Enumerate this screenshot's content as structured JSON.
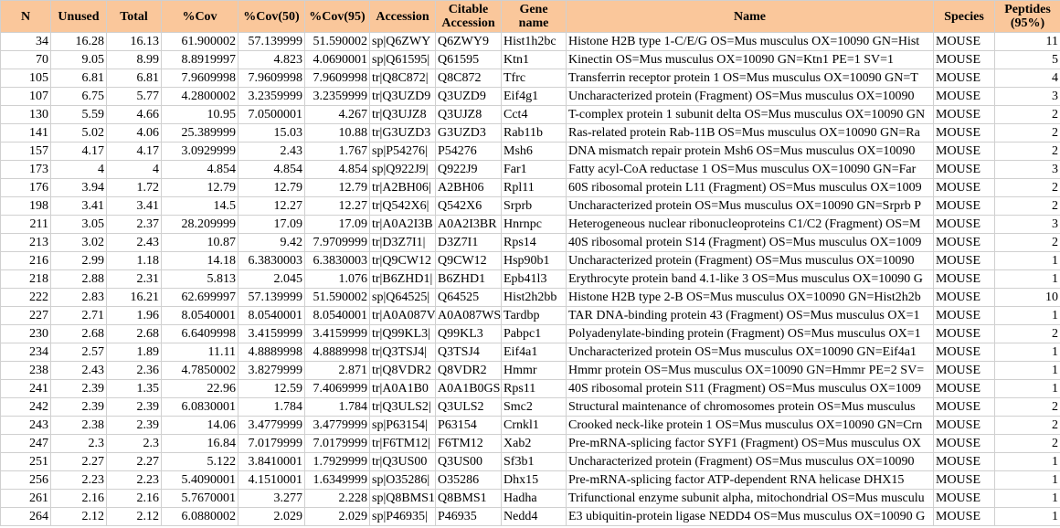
{
  "table": {
    "columns": [
      "N",
      "Unused",
      "Total",
      "%Cov",
      "%Cov(50)",
      "%Cov(95)",
      "Accession",
      "Citable Accession",
      "Gene name",
      "Name",
      "Species",
      "Peptides (95%)"
    ],
    "rows": [
      [
        34,
        16.28,
        16.13,
        61.900002,
        57.139999,
        51.590002,
        "sp|Q6ZWY",
        "Q6ZWY9",
        "Hist1h2bc",
        "Histone H2B type 1-C/E/G OS=Mus musculus OX=10090 GN=Hist",
        "MOUSE",
        11
      ],
      [
        70,
        9.05,
        8.99,
        8.8919997,
        4.823,
        4.0690001,
        "sp|Q61595|",
        "Q61595",
        "Ktn1",
        "Kinectin OS=Mus musculus OX=10090 GN=Ktn1 PE=1 SV=1",
        "MOUSE",
        5
      ],
      [
        105,
        6.81,
        6.81,
        7.9609998,
        7.9609998,
        7.9609998,
        "tr|Q8C872|",
        "Q8C872",
        "Tfrc",
        "Transferrin receptor protein 1 OS=Mus musculus OX=10090 GN=T",
        "MOUSE",
        4
      ],
      [
        107,
        6.75,
        5.77,
        4.2800002,
        3.2359999,
        3.2359999,
        "tr|Q3UZD9",
        "Q3UZD9",
        "Eif4g1",
        "Uncharacterized protein (Fragment) OS=Mus musculus OX=10090",
        "MOUSE",
        3
      ],
      [
        130,
        5.59,
        4.66,
        10.95,
        7.0500001,
        4.267,
        "tr|Q3UJZ8",
        "Q3UJZ8",
        "Cct4",
        "T-complex protein 1 subunit delta OS=Mus musculus OX=10090 GN",
        "MOUSE",
        2
      ],
      [
        141,
        5.02,
        4.06,
        25.389999,
        15.03,
        10.88,
        "tr|G3UZD3",
        "G3UZD3",
        "Rab11b",
        "Ras-related protein Rab-11B OS=Mus musculus OX=10090 GN=Ra",
        "MOUSE",
        2
      ],
      [
        157,
        4.17,
        4.17,
        3.0929999,
        2.43,
        1.767,
        "sp|P54276|",
        "P54276",
        "Msh6",
        "DNA mismatch repair protein Msh6 OS=Mus musculus OX=10090",
        "MOUSE",
        2
      ],
      [
        173,
        4,
        4,
        4.854,
        4.854,
        4.854,
        "sp|Q922J9|",
        "Q922J9",
        "Far1",
        "Fatty acyl-CoA reductase 1 OS=Mus musculus OX=10090 GN=Far",
        "MOUSE",
        3
      ],
      [
        176,
        3.94,
        1.72,
        12.79,
        12.79,
        12.79,
        "tr|A2BH06|",
        "A2BH06",
        "Rpl11",
        "60S ribosomal protein L11 (Fragment) OS=Mus musculus OX=1009",
        "MOUSE",
        2
      ],
      [
        198,
        3.41,
        3.41,
        14.5,
        12.27,
        12.27,
        "tr|Q542X6|",
        "Q542X6",
        "Srprb",
        "Uncharacterized protein OS=Mus musculus OX=10090 GN=Srprb P",
        "MOUSE",
        2
      ],
      [
        211,
        3.05,
        2.37,
        28.209999,
        17.09,
        17.09,
        "tr|A0A2I3B",
        "A0A2I3BR",
        "Hnrnpc",
        "Heterogeneous nuclear ribonucleoproteins C1/C2 (Fragment) OS=M",
        "MOUSE",
        3
      ],
      [
        213,
        3.02,
        2.43,
        10.87,
        9.42,
        7.9709999,
        "tr|D3Z7I1|",
        "D3Z7I1",
        "Rps14",
        "40S ribosomal protein S14 (Fragment) OS=Mus musculus OX=1009",
        "MOUSE",
        2
      ],
      [
        216,
        2.99,
        1.18,
        14.18,
        6.3830003,
        6.3830003,
        "tr|Q9CW12",
        "Q9CW12",
        "Hsp90b1",
        "Uncharacterized protein (Fragment) OS=Mus musculus OX=10090",
        "MOUSE",
        1
      ],
      [
        218,
        2.88,
        2.31,
        5.813,
        2.045,
        1.076,
        "tr|B6ZHD1|",
        "B6ZHD1",
        "Epb41l3",
        "Erythrocyte protein band 4.1-like 3 OS=Mus musculus OX=10090 G",
        "MOUSE",
        1
      ],
      [
        222,
        2.83,
        16.21,
        62.699997,
        57.139999,
        51.590002,
        "sp|Q64525|",
        "Q64525",
        "Hist2h2bb",
        "Histone H2B type 2-B OS=Mus musculus OX=10090 GN=Hist2h2b",
        "MOUSE",
        10
      ],
      [
        227,
        2.71,
        1.96,
        8.0540001,
        8.0540001,
        8.0540001,
        "tr|A0A087V",
        "A0A087WS",
        "Tardbp",
        "TAR DNA-binding protein 43 (Fragment) OS=Mus musculus OX=1",
        "MOUSE",
        1
      ],
      [
        230,
        2.68,
        2.68,
        6.6409998,
        3.4159999,
        3.4159999,
        "tr|Q99KL3|",
        "Q99KL3",
        "Pabpc1",
        "Polyadenylate-binding protein (Fragment) OS=Mus musculus OX=1",
        "MOUSE",
        2
      ],
      [
        234,
        2.57,
        1.89,
        11.11,
        4.8889998,
        4.8889998,
        "tr|Q3TSJ4|",
        "Q3TSJ4",
        "Eif4a1",
        "Uncharacterized protein OS=Mus musculus OX=10090 GN=Eif4a1",
        "MOUSE",
        1
      ],
      [
        238,
        2.43,
        2.36,
        4.7850002,
        3.8279999,
        2.871,
        "tr|Q8VDR2",
        "Q8VDR2",
        "Hmmr",
        "Hmmr protein OS=Mus musculus OX=10090 GN=Hmmr PE=2 SV=",
        "MOUSE",
        1
      ],
      [
        241,
        2.39,
        1.35,
        22.96,
        12.59,
        7.4069999,
        "tr|A0A1B0",
        "A0A1B0GS",
        "Rps11",
        "40S ribosomal protein S11 (Fragment) OS=Mus musculus OX=1009",
        "MOUSE",
        1
      ],
      [
        242,
        2.39,
        2.39,
        6.0830001,
        1.784,
        1.784,
        "tr|Q3ULS2|",
        "Q3ULS2",
        "Smc2",
        "Structural maintenance of chromosomes protein OS=Mus musculus",
        "MOUSE",
        2
      ],
      [
        243,
        2.38,
        2.39,
        14.06,
        3.4779999,
        3.4779999,
        "sp|P63154|",
        "P63154",
        "Crnkl1",
        "Crooked neck-like protein 1 OS=Mus musculus OX=10090 GN=Crn",
        "MOUSE",
        2
      ],
      [
        247,
        2.3,
        2.3,
        16.84,
        7.0179999,
        7.0179999,
        "tr|F6TM12|",
        "F6TM12",
        "Xab2",
        "Pre-mRNA-splicing factor SYF1 (Fragment) OS=Mus musculus OX",
        "MOUSE",
        2
      ],
      [
        251,
        2.27,
        2.27,
        5.122,
        3.8410001,
        1.7929999,
        "tr|Q3US00",
        "Q3US00",
        "Sf3b1",
        "Uncharacterized protein (Fragment) OS=Mus musculus OX=10090",
        "MOUSE",
        1
      ],
      [
        256,
        2.23,
        2.23,
        5.4090001,
        4.1510001,
        1.6349999,
        "sp|O35286|",
        "O35286",
        "Dhx15",
        "Pre-mRNA-splicing factor ATP-dependent RNA helicase DHX15",
        "MOUSE",
        1
      ],
      [
        261,
        2.16,
        2.16,
        5.7670001,
        3.277,
        2.228,
        "sp|Q8BMS1",
        "Q8BMS1",
        "Hadha",
        "Trifunctional enzyme subunit alpha, mitochondrial OS=Mus musculu",
        "MOUSE",
        1
      ],
      [
        264,
        2.12,
        2.12,
        6.0880002,
        2.029,
        2.029,
        "sp|P46935|",
        "P46935",
        "Nedd4",
        "E3 ubiquitin-protein ligase NEDD4 OS=Mus musculus OX=10090 G",
        "MOUSE",
        1
      ]
    ]
  }
}
